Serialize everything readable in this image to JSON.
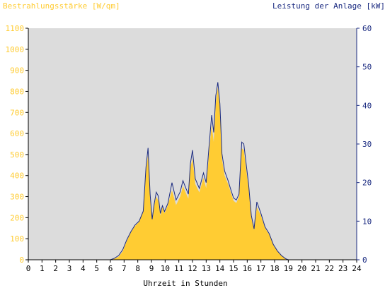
{
  "chart_data": {
    "type": "area",
    "title_left": "Bestrahlungsstärke [W/qm]",
    "title_right": "Leistung der Anlage [kW]",
    "xlabel": "Uhrzeit in Stunden",
    "x_ticks": [
      "0",
      "1",
      "2",
      "3",
      "4",
      "5",
      "6",
      "7",
      "8",
      "9",
      "10",
      "11",
      "12",
      "13",
      "14",
      "15",
      "16",
      "17",
      "18",
      "19",
      "20",
      "21",
      "22",
      "23",
      "24"
    ],
    "y_left_ticks": [
      "0",
      "100",
      "200",
      "300",
      "400",
      "500",
      "600",
      "700",
      "800",
      "900",
      "1000",
      "1100"
    ],
    "y_right_ticks": [
      "0",
      "10",
      "20",
      "30",
      "40",
      "50",
      "60"
    ],
    "xlim": [
      0,
      24
    ],
    "ylim_left": [
      0,
      1100
    ],
    "ylim_right": [
      0,
      60
    ],
    "colors": {
      "plot_background": "#dcdcdc",
      "irradiance_fill": "#ffcc33",
      "power_line": "#1a2a80",
      "left_axis_text": "#ffcc33",
      "right_axis_text": "#1a2a80"
    },
    "series": [
      {
        "kind": "area",
        "axis": "left",
        "x": [
          0,
          6.0,
          6.3,
          6.6,
          6.9,
          7.2,
          7.5,
          7.8,
          8.1,
          8.4,
          8.6,
          8.75,
          8.9,
          9.05,
          9.2,
          9.35,
          9.5,
          9.65,
          9.8,
          9.95,
          10.2,
          10.5,
          10.8,
          11.1,
          11.3,
          11.5,
          11.7,
          11.85,
          12.0,
          12.2,
          12.5,
          12.8,
          13.0,
          13.2,
          13.4,
          13.55,
          13.7,
          13.85,
          14.0,
          14.15,
          14.35,
          14.6,
          14.8,
          15.0,
          15.2,
          15.4,
          15.6,
          15.75,
          15.9,
          16.1,
          16.3,
          16.5,
          16.7,
          17.0,
          17.3,
          17.6,
          17.9,
          18.2,
          18.5,
          18.8,
          19.0,
          19.2,
          24
        ],
        "y": [
          0,
          0,
          5,
          15,
          40,
          90,
          130,
          160,
          180,
          230,
          420,
          500,
          300,
          190,
          260,
          300,
          280,
          210,
          250,
          220,
          260,
          330,
          260,
          300,
          350,
          320,
          290,
          440,
          480,
          360,
          320,
          390,
          340,
          500,
          640,
          560,
          740,
          820,
          720,
          480,
          400,
          360,
          320,
          280,
          270,
          300,
          530,
          520,
          440,
          340,
          200,
          140,
          250,
          210,
          150,
          120,
          70,
          40,
          20,
          5,
          0,
          0,
          0
        ]
      },
      {
        "kind": "line",
        "axis": "right",
        "x": [
          0,
          6.0,
          6.3,
          6.6,
          6.9,
          7.2,
          7.5,
          7.8,
          8.1,
          8.4,
          8.6,
          8.75,
          8.9,
          9.05,
          9.2,
          9.35,
          9.5,
          9.65,
          9.8,
          9.95,
          10.2,
          10.5,
          10.8,
          11.1,
          11.3,
          11.5,
          11.7,
          11.85,
          12.0,
          12.2,
          12.5,
          12.8,
          13.0,
          13.2,
          13.4,
          13.55,
          13.7,
          13.85,
          14.0,
          14.15,
          14.35,
          14.6,
          14.8,
          15.0,
          15.2,
          15.4,
          15.6,
          15.75,
          15.9,
          16.1,
          16.3,
          16.5,
          16.7,
          17.0,
          17.3,
          17.6,
          17.9,
          18.2,
          18.5,
          18.8,
          19.0,
          19.2,
          24
        ],
        "y": [
          0,
          0,
          0.4,
          1.1,
          2.6,
          5.2,
          7.3,
          9.0,
          10.0,
          12.6,
          24.0,
          29.0,
          17.0,
          10.5,
          14.5,
          17.5,
          16.5,
          12.0,
          14.0,
          12.5,
          14.6,
          20.0,
          15.5,
          17.6,
          20.5,
          18.7,
          17.0,
          25.0,
          28.4,
          21.0,
          18.5,
          22.5,
          20.0,
          29.0,
          37.5,
          33.0,
          42.5,
          46.0,
          40.5,
          27.5,
          23.0,
          20.5,
          18.2,
          16.0,
          15.5,
          17.0,
          30.5,
          30.0,
          25.5,
          19.5,
          11.5,
          8.0,
          15.0,
          12.0,
          8.5,
          6.8,
          4.0,
          2.3,
          1.1,
          0.3,
          0,
          0,
          0
        ]
      }
    ]
  }
}
